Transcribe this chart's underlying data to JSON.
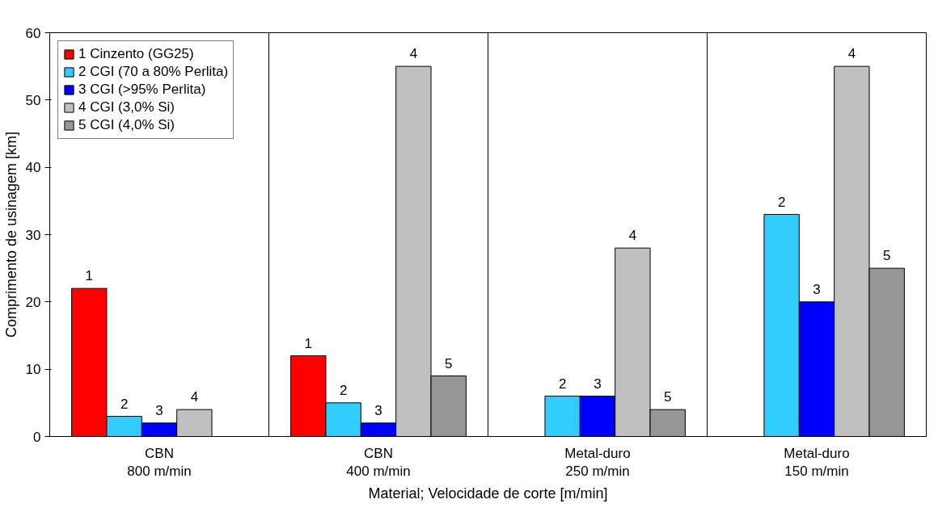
{
  "chart_data": {
    "type": "bar",
    "xlabel": "Material; Velocidade de corte [m/min]",
    "ylabel": "Comprimento de usinagem [km]",
    "categories": [
      "CBN\n800 m/min",
      "CBN\n400 m/min",
      "Metal-duro\n250 m/min",
      "Metal-duro\n150 m/min"
    ],
    "series": [
      {
        "name": "1 Cinzento (GG25)",
        "color": "#ff0000",
        "values": [
          22,
          12,
          null,
          null
        ]
      },
      {
        "name": "2 CGI (70 a 80% Perlita)",
        "color": "#33ccff",
        "values": [
          3,
          5,
          6,
          33
        ]
      },
      {
        "name": "3 CGI (>95% Perlita)",
        "color": "#0000ff",
        "values": [
          2,
          2,
          6,
          20
        ]
      },
      {
        "name": "4 CGI (3,0% Si)",
        "color": "#c0c0c0",
        "values": [
          4,
          55,
          28,
          55
        ]
      },
      {
        "name": "5 CGI (4,0% Si)",
        "color": "#969696",
        "values": [
          null,
          9,
          4,
          25
        ]
      }
    ],
    "annotations": [
      "1",
      "2",
      "3",
      "4",
      "1",
      "2",
      "3",
      "4",
      "5",
      "2",
      "3",
      "4",
      "5",
      "2",
      "3",
      "4",
      "5"
    ],
    "ylim": [
      0,
      60
    ],
    "yticks": [
      0,
      10,
      20,
      30,
      40,
      50,
      60
    ],
    "grid": "x",
    "legend": "top left"
  }
}
